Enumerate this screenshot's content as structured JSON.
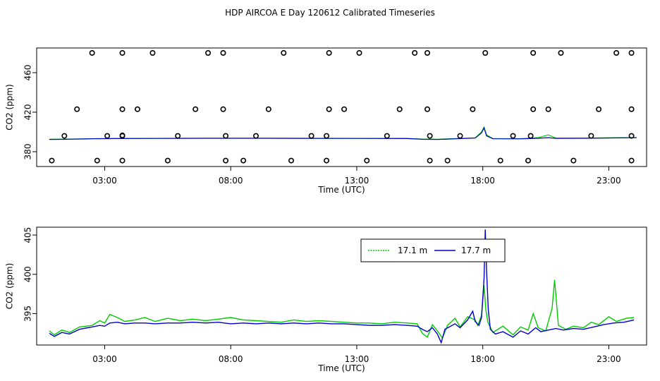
{
  "title": "HDP AIRCOA E  Day 120612  Calibrated Timeseries",
  "colors": {
    "series_green": "#00cc00",
    "series_blue": "#0000cc",
    "markers": "#000000"
  },
  "chart_data": [
    {
      "type": "scatter",
      "xlabel": "Time (UTC)",
      "ylabel": "CO2 (ppm)",
      "xlim": [
        0.3,
        24.5
      ],
      "ylim": [
        365,
        485
      ],
      "x_ticks": [
        3,
        8,
        13,
        18,
        23
      ],
      "x_tick_labels": [
        "03:00",
        "08:00",
        "13:00",
        "18:00",
        "23:00"
      ],
      "y_ticks": [
        380,
        420,
        460
      ],
      "y_tick_labels": [
        "380",
        "420",
        "460"
      ],
      "grid": false,
      "line_series": [
        {
          "points": [
            [
              0.8,
              392.6
            ],
            [
              1.5,
              392.7
            ],
            [
              2.5,
              393.2
            ],
            [
              3.5,
              393.4
            ],
            [
              5,
              393.5
            ],
            [
              7,
              393.7
            ],
            [
              9,
              393.7
            ],
            [
              11,
              393.6
            ],
            [
              13,
              393.5
            ],
            [
              15,
              393.5
            ],
            [
              15.6,
              392.8
            ],
            [
              16.2,
              392.6
            ],
            [
              17,
              393.4
            ],
            [
              17.7,
              394.0
            ],
            [
              17.95,
              400
            ],
            [
              18.05,
              405
            ],
            [
              18.15,
              397
            ],
            [
              18.4,
              393.3
            ],
            [
              19.5,
              393.2
            ],
            [
              20.2,
              394.2
            ],
            [
              20.6,
              397
            ],
            [
              20.9,
              393.8
            ],
            [
              22,
              393.8
            ],
            [
              23.5,
              394.2
            ],
            [
              24.1,
              394.3
            ]
          ]
        },
        {
          "points": [
            [
              0.8,
              392.4
            ],
            [
              1.5,
              392.6
            ],
            [
              2.5,
              393.1
            ],
            [
              3.5,
              393.3
            ],
            [
              5,
              393.4
            ],
            [
              7,
              393.6
            ],
            [
              9,
              393.6
            ],
            [
              11,
              393.5
            ],
            [
              13,
              393.4
            ],
            [
              15,
              393.3
            ],
            [
              15.6,
              392.6
            ],
            [
              16.2,
              392.4
            ],
            [
              17,
              393.1
            ],
            [
              17.7,
              393.8
            ],
            [
              17.95,
              399
            ],
            [
              18.05,
              404
            ],
            [
              18.15,
              396
            ],
            [
              18.4,
              393.1
            ],
            [
              19.5,
              393.0
            ],
            [
              20.2,
              393.6
            ],
            [
              20.6,
              394.2
            ],
            [
              20.9,
              393.5
            ],
            [
              22,
              393.6
            ],
            [
              23.5,
              394.0
            ],
            [
              24.1,
              394.2
            ]
          ]
        }
      ],
      "markers": [
        [
          2.5,
          480
        ],
        [
          3.7,
          480
        ],
        [
          4.9,
          480
        ],
        [
          7.1,
          480
        ],
        [
          7.7,
          480
        ],
        [
          10.1,
          480
        ],
        [
          11.9,
          480
        ],
        [
          13.1,
          480
        ],
        [
          15.3,
          480
        ],
        [
          15.8,
          480
        ],
        [
          18.1,
          480
        ],
        [
          20.0,
          480
        ],
        [
          21.1,
          480
        ],
        [
          23.3,
          480
        ],
        [
          23.9,
          480
        ],
        [
          1.9,
          423
        ],
        [
          3.7,
          423
        ],
        [
          4.3,
          423
        ],
        [
          6.6,
          423
        ],
        [
          7.7,
          423
        ],
        [
          9.5,
          423
        ],
        [
          11.9,
          423
        ],
        [
          12.5,
          423
        ],
        [
          14.7,
          423
        ],
        [
          15.8,
          423
        ],
        [
          17.6,
          423
        ],
        [
          20.0,
          423
        ],
        [
          20.6,
          423
        ],
        [
          22.6,
          423
        ],
        [
          23.9,
          423
        ],
        [
          1.4,
          396
        ],
        [
          3.1,
          396
        ],
        [
          3.7,
          396
        ],
        [
          3.7,
          396.5
        ],
        [
          5.9,
          396
        ],
        [
          7.8,
          396
        ],
        [
          9.0,
          396
        ],
        [
          11.2,
          396
        ],
        [
          11.8,
          396
        ],
        [
          14.2,
          396
        ],
        [
          15.9,
          396
        ],
        [
          17.1,
          396
        ],
        [
          19.2,
          396
        ],
        [
          19.9,
          396
        ],
        [
          22.3,
          396
        ],
        [
          23.9,
          396
        ],
        [
          0.9,
          371
        ],
        [
          2.7,
          371
        ],
        [
          3.7,
          371
        ],
        [
          5.5,
          371
        ],
        [
          7.8,
          371
        ],
        [
          8.5,
          371
        ],
        [
          10.4,
          371
        ],
        [
          11.8,
          371
        ],
        [
          13.4,
          371
        ],
        [
          15.9,
          371
        ],
        [
          16.6,
          371
        ],
        [
          18.7,
          371
        ],
        [
          19.8,
          371
        ],
        [
          21.6,
          371
        ],
        [
          23.9,
          371
        ]
      ]
    },
    {
      "type": "line",
      "xlabel": "Time (UTC)",
      "ylabel": "CO2 (ppm)",
      "xlim": [
        0.3,
        24.5
      ],
      "ylim": [
        391,
        406
      ],
      "x_ticks": [
        3,
        8,
        13,
        18,
        23
      ],
      "x_tick_labels": [
        "03:00",
        "08:00",
        "13:00",
        "18:00",
        "23:00"
      ],
      "y_ticks": [
        395,
        400,
        405
      ],
      "y_tick_labels": [
        "395",
        "400",
        "405"
      ],
      "grid": false,
      "legend": {
        "placement": "top-center",
        "entries": [
          "17.1 m",
          "17.7 m"
        ]
      },
      "series": [
        {
          "name": "17.1 m",
          "color": "#00cc00",
          "points": [
            [
              0.8,
              392.8
            ],
            [
              1.0,
              392.3
            ],
            [
              1.3,
              392.9
            ],
            [
              1.6,
              392.6
            ],
            [
              2.0,
              393.3
            ],
            [
              2.5,
              393.5
            ],
            [
              2.8,
              394.1
            ],
            [
              3.0,
              393.8
            ],
            [
              3.2,
              394.9
            ],
            [
              3.5,
              394.5
            ],
            [
              3.8,
              394.0
            ],
            [
              4.2,
              394.2
            ],
            [
              4.6,
              394.5
            ],
            [
              5.0,
              394.0
            ],
            [
              5.5,
              394.4
            ],
            [
              6.0,
              394.1
            ],
            [
              6.5,
              394.3
            ],
            [
              7.0,
              394.1
            ],
            [
              7.5,
              394.3
            ],
            [
              8.0,
              394.5
            ],
            [
              8.5,
              394.2
            ],
            [
              9.0,
              394.1
            ],
            [
              9.5,
              394.0
            ],
            [
              10.0,
              393.9
            ],
            [
              10.5,
              394.2
            ],
            [
              11.0,
              394.0
            ],
            [
              11.5,
              394.1
            ],
            [
              12.0,
              394.0
            ],
            [
              12.5,
              393.9
            ],
            [
              13.0,
              393.8
            ],
            [
              13.5,
              393.8
            ],
            [
              14.0,
              393.7
            ],
            [
              14.5,
              393.9
            ],
            [
              15.0,
              393.8
            ],
            [
              15.4,
              393.7
            ],
            [
              15.6,
              392.5
            ],
            [
              15.8,
              392.0
            ],
            [
              16.0,
              393.6
            ],
            [
              16.2,
              392.8
            ],
            [
              16.4,
              391.9
            ],
            [
              16.6,
              393.5
            ],
            [
              16.9,
              394.4
            ],
            [
              17.1,
              393.3
            ],
            [
              17.4,
              394.6
            ],
            [
              17.7,
              394.2
            ],
            [
              17.8,
              393.5
            ],
            [
              17.95,
              394.8
            ],
            [
              18.05,
              398.6
            ],
            [
              18.12,
              395.5
            ],
            [
              18.2,
              393.9
            ],
            [
              18.4,
              392.6
            ],
            [
              18.8,
              393.4
            ],
            [
              19.2,
              392.3
            ],
            [
              19.5,
              393.3
            ],
            [
              19.8,
              392.9
            ],
            [
              20.0,
              395.0
            ],
            [
              20.2,
              393.2
            ],
            [
              20.5,
              392.8
            ],
            [
              20.75,
              395.7
            ],
            [
              20.85,
              399.3
            ],
            [
              21.0,
              393.5
            ],
            [
              21.3,
              393.0
            ],
            [
              21.6,
              393.4
            ],
            [
              22.0,
              393.2
            ],
            [
              22.3,
              393.9
            ],
            [
              22.6,
              393.6
            ],
            [
              23.0,
              394.6
            ],
            [
              23.3,
              394.0
            ],
            [
              23.7,
              394.4
            ],
            [
              24.0,
              394.5
            ]
          ]
        },
        {
          "name": "17.7 m",
          "color": "#0000cc",
          "points": [
            [
              0.8,
              392.5
            ],
            [
              1.0,
              392.1
            ],
            [
              1.3,
              392.6
            ],
            [
              1.6,
              392.4
            ],
            [
              2.0,
              393.0
            ],
            [
              2.5,
              393.3
            ],
            [
              2.8,
              393.5
            ],
            [
              3.0,
              393.4
            ],
            [
              3.2,
              393.8
            ],
            [
              3.5,
              393.9
            ],
            [
              3.8,
              393.7
            ],
            [
              4.2,
              393.8
            ],
            [
              4.6,
              393.8
            ],
            [
              5.0,
              393.7
            ],
            [
              5.5,
              393.8
            ],
            [
              6.0,
              393.8
            ],
            [
              6.5,
              393.9
            ],
            [
              7.0,
              393.8
            ],
            [
              7.5,
              393.9
            ],
            [
              8.0,
              393.7
            ],
            [
              8.5,
              393.8
            ],
            [
              9.0,
              393.7
            ],
            [
              9.5,
              393.8
            ],
            [
              10.0,
              393.7
            ],
            [
              10.5,
              393.8
            ],
            [
              11.0,
              393.7
            ],
            [
              11.5,
              393.8
            ],
            [
              12.0,
              393.7
            ],
            [
              12.5,
              393.7
            ],
            [
              13.0,
              393.6
            ],
            [
              13.5,
              393.5
            ],
            [
              14.0,
              393.5
            ],
            [
              14.5,
              393.6
            ],
            [
              15.0,
              393.5
            ],
            [
              15.4,
              393.4
            ],
            [
              15.6,
              393.0
            ],
            [
              15.8,
              392.7
            ],
            [
              16.0,
              393.2
            ],
            [
              16.2,
              392.4
            ],
            [
              16.35,
              391.3
            ],
            [
              16.5,
              393.0
            ],
            [
              16.9,
              393.7
            ],
            [
              17.1,
              393.2
            ],
            [
              17.4,
              394.2
            ],
            [
              17.6,
              395.3
            ],
            [
              17.7,
              394.0
            ],
            [
              17.85,
              393.5
            ],
            [
              17.95,
              394.5
            ],
            [
              18.05,
              399.5
            ],
            [
              18.1,
              405.7
            ],
            [
              18.15,
              400.5
            ],
            [
              18.22,
              395.5
            ],
            [
              18.3,
              393.0
            ],
            [
              18.5,
              392.4
            ],
            [
              18.8,
              392.7
            ],
            [
              19.2,
              392.0
            ],
            [
              19.5,
              392.8
            ],
            [
              19.8,
              392.4
            ],
            [
              20.1,
              393.2
            ],
            [
              20.3,
              392.7
            ],
            [
              20.6,
              392.9
            ],
            [
              20.9,
              393.1
            ],
            [
              21.2,
              392.9
            ],
            [
              21.6,
              393.1
            ],
            [
              22.0,
              393.0
            ],
            [
              22.4,
              393.3
            ],
            [
              22.8,
              393.6
            ],
            [
              23.2,
              393.8
            ],
            [
              23.6,
              393.9
            ],
            [
              24.0,
              394.2
            ]
          ]
        }
      ]
    }
  ]
}
